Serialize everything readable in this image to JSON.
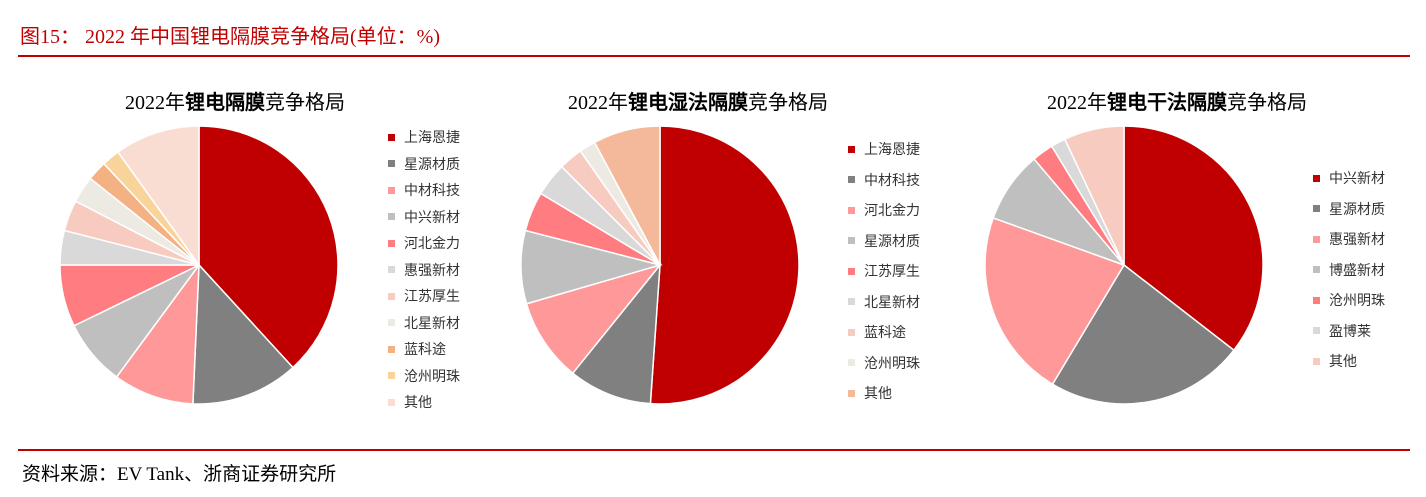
{
  "figure_title": "图15：  2022 年中国锂电隔膜竞争格局(单位：%)",
  "source": "资料来源：EV Tank、浙商证券研究所",
  "chart_data": [
    {
      "type": "pie",
      "title_prefix": "2022年",
      "title_bold": "锂电隔膜",
      "title_suffix": "竞争格局",
      "legend": "right",
      "start": "top",
      "direction": "clockwise",
      "labels": [
        "上海恩捷",
        "星源材质",
        "中材科技",
        "中兴新材",
        "河北金力",
        "惠强新材",
        "江苏厚生",
        "北星新材",
        "蓝科途",
        "沧州明珠",
        "其他"
      ],
      "values": [
        38.2,
        12.5,
        9.4,
        7.7,
        7.2,
        4.0,
        3.6,
        3.1,
        2.3,
        2.1,
        9.9
      ],
      "colors": [
        "#C00000",
        "#808080",
        "#FF9999",
        "#BFBFBF",
        "#FF7C80",
        "#D9D9D9",
        "#F8CBC0",
        "#EDEAE4",
        "#F4B183",
        "#F8D49A",
        "#FADDD2"
      ]
    },
    {
      "type": "pie",
      "title_prefix": "2022年",
      "title_bold": "锂电湿法隔膜",
      "title_suffix": "竞争格局",
      "legend": "right",
      "start": "top",
      "direction": "clockwise",
      "labels": [
        "上海恩捷",
        "中材科技",
        "河北金力",
        "星源材质",
        "江苏厚生",
        "北星新材",
        "蓝科途",
        "沧州明珠",
        "其他"
      ],
      "values": [
        51.1,
        9.7,
        9.7,
        8.5,
        4.6,
        3.9,
        2.8,
        1.9,
        7.8
      ],
      "colors": [
        "#C00000",
        "#808080",
        "#FF9999",
        "#BFBFBF",
        "#FF7C80",
        "#D9D9D9",
        "#F8CBC0",
        "#EDEAE4",
        "#F4B99A"
      ]
    },
    {
      "type": "pie",
      "title_prefix": "2022年",
      "title_bold": "锂电干法隔膜",
      "title_suffix": "竞争格局",
      "legend": "right",
      "start": "top",
      "direction": "clockwise",
      "labels": [
        "中兴新材",
        "星源材质",
        "惠强新材",
        "博盛新材",
        "沧州明珠",
        "盈博莱",
        "其他"
      ],
      "values": [
        35.5,
        23.1,
        21.9,
        8.3,
        2.5,
        1.7,
        7.0
      ],
      "colors": [
        "#C00000",
        "#808080",
        "#FF9999",
        "#BFBFBF",
        "#FF7C80",
        "#D9D9D9",
        "#F8CBC0"
      ]
    }
  ]
}
